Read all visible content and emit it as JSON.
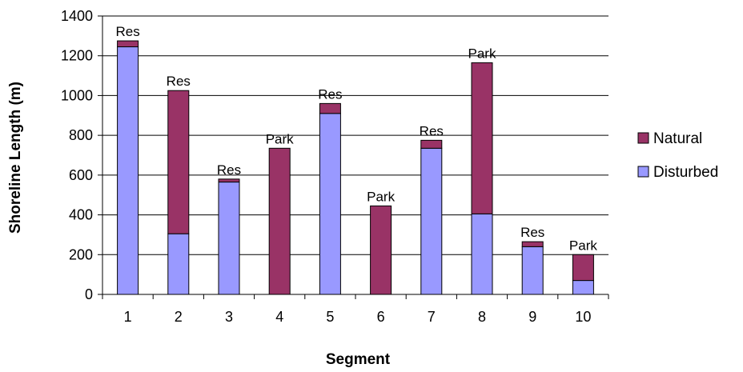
{
  "chart_data": {
    "type": "bar",
    "stacked": true,
    "title": "",
    "xlabel": "Segment",
    "ylabel": "Shoreline Length (m)",
    "ylim": [
      0,
      1400
    ],
    "ytick_step": 200,
    "grid": true,
    "legend_position": "right",
    "categories": [
      "1",
      "2",
      "3",
      "4",
      "5",
      "6",
      "7",
      "8",
      "9",
      "10"
    ],
    "bar_labels": [
      "Res",
      "Res",
      "Res",
      "Park",
      "Res",
      "Park",
      "Res",
      "Park",
      "Res",
      "Park"
    ],
    "series": [
      {
        "name": "Disturbed",
        "color": "#9999ff",
        "values": [
          1245,
          305,
          565,
          0,
          910,
          0,
          735,
          405,
          240,
          70
        ]
      },
      {
        "name": "Natural",
        "color": "#993366",
        "values": [
          30,
          720,
          15,
          735,
          50,
          445,
          40,
          760,
          25,
          130
        ]
      }
    ]
  }
}
